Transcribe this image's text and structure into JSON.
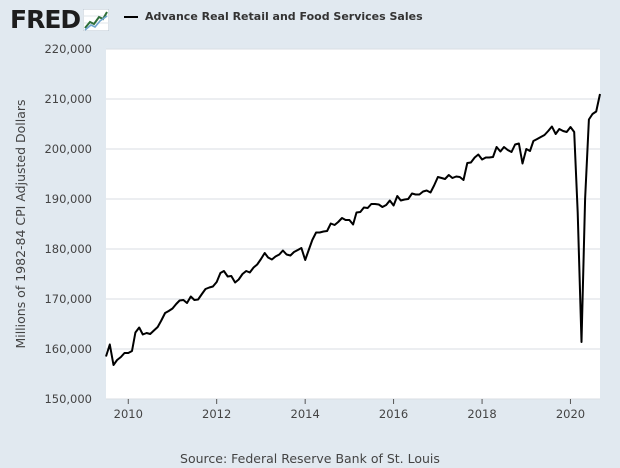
{
  "header": {
    "logo_text": "FRED",
    "legend_label": "Advance Real Retail and Food Services Sales"
  },
  "footer": {
    "source": "Source: Federal Reserve Bank of St. Louis"
  },
  "colors": {
    "page_background": "#e1e9f0",
    "plot_background": "#ffffff",
    "series_line": "#000000",
    "text": "#444444"
  },
  "chart_data": {
    "type": "line",
    "title": "",
    "xlabel": "",
    "ylabel": "Millions of 1982-84 CPI Adjusted Dollars",
    "x_type": "date",
    "xlim": [
      "2009-07-01",
      "2020-09-01"
    ],
    "ylim": [
      150000,
      220000
    ],
    "y_ticks": [
      150000,
      160000,
      170000,
      180000,
      190000,
      200000,
      210000,
      220000
    ],
    "y_tick_labels": [
      "150,000",
      "160,000",
      "170,000",
      "180,000",
      "190,000",
      "200,000",
      "210,000",
      "220,000"
    ],
    "x_ticks": [
      "2010-01-01",
      "2012-01-01",
      "2014-01-01",
      "2016-01-01",
      "2018-01-01",
      "2020-01-01"
    ],
    "x_tick_labels": [
      "2010",
      "2012",
      "2014",
      "2016",
      "2018",
      "2020"
    ],
    "grid": "horizontal",
    "legend_position": "top",
    "series": [
      {
        "name": "Advance Real Retail and Food Services Sales",
        "color": "#000000",
        "points": [
          [
            "2009-07-01",
            158500
          ],
          [
            "2009-08-01",
            160900
          ],
          [
            "2009-09-01",
            156800
          ],
          [
            "2009-10-01",
            157800
          ],
          [
            "2009-11-01",
            158400
          ],
          [
            "2009-12-01",
            159200
          ],
          [
            "2010-01-01",
            159200
          ],
          [
            "2010-02-01",
            159600
          ],
          [
            "2010-03-01",
            163300
          ],
          [
            "2010-04-01",
            164300
          ],
          [
            "2010-05-01",
            162900
          ],
          [
            "2010-06-01",
            163200
          ],
          [
            "2010-07-01",
            163000
          ],
          [
            "2010-08-01",
            163700
          ],
          [
            "2010-09-01",
            164400
          ],
          [
            "2010-10-01",
            165700
          ],
          [
            "2010-11-01",
            167200
          ],
          [
            "2010-12-01",
            167600
          ],
          [
            "2011-01-01",
            168100
          ],
          [
            "2011-02-01",
            169000
          ],
          [
            "2011-03-01",
            169700
          ],
          [
            "2011-04-01",
            169800
          ],
          [
            "2011-05-01",
            169200
          ],
          [
            "2011-06-01",
            170500
          ],
          [
            "2011-07-01",
            169800
          ],
          [
            "2011-08-01",
            169900
          ],
          [
            "2011-09-01",
            171000
          ],
          [
            "2011-10-01",
            172000
          ],
          [
            "2011-11-01",
            172300
          ],
          [
            "2011-12-01",
            172500
          ],
          [
            "2012-01-01",
            173400
          ],
          [
            "2012-02-01",
            175200
          ],
          [
            "2012-03-01",
            175600
          ],
          [
            "2012-04-01",
            174500
          ],
          [
            "2012-05-01",
            174600
          ],
          [
            "2012-06-01",
            173300
          ],
          [
            "2012-07-01",
            173900
          ],
          [
            "2012-08-01",
            175000
          ],
          [
            "2012-09-01",
            175600
          ],
          [
            "2012-10-01",
            175300
          ],
          [
            "2012-11-01",
            176300
          ],
          [
            "2012-12-01",
            176900
          ],
          [
            "2013-01-01",
            178000
          ],
          [
            "2013-02-01",
            179200
          ],
          [
            "2013-03-01",
            178300
          ],
          [
            "2013-04-01",
            177900
          ],
          [
            "2013-05-01",
            178500
          ],
          [
            "2013-06-01",
            178900
          ],
          [
            "2013-07-01",
            179700
          ],
          [
            "2013-08-01",
            178900
          ],
          [
            "2013-09-01",
            178700
          ],
          [
            "2013-10-01",
            179400
          ],
          [
            "2013-11-01",
            179800
          ],
          [
            "2013-12-01",
            180200
          ],
          [
            "2014-01-01",
            177800
          ],
          [
            "2014-02-01",
            179900
          ],
          [
            "2014-03-01",
            181800
          ],
          [
            "2014-04-01",
            183300
          ],
          [
            "2014-05-01",
            183300
          ],
          [
            "2014-06-01",
            183500
          ],
          [
            "2014-07-01",
            183600
          ],
          [
            "2014-08-01",
            185100
          ],
          [
            "2014-09-01",
            184800
          ],
          [
            "2014-10-01",
            185400
          ],
          [
            "2014-11-01",
            186200
          ],
          [
            "2014-12-01",
            185800
          ],
          [
            "2015-01-01",
            185800
          ],
          [
            "2015-02-01",
            184900
          ],
          [
            "2015-03-01",
            187300
          ],
          [
            "2015-04-01",
            187400
          ],
          [
            "2015-05-01",
            188300
          ],
          [
            "2015-06-01",
            188200
          ],
          [
            "2015-07-01",
            189000
          ],
          [
            "2015-08-01",
            189000
          ],
          [
            "2015-09-01",
            188900
          ],
          [
            "2015-10-01",
            188400
          ],
          [
            "2015-11-01",
            188800
          ],
          [
            "2015-12-01",
            189700
          ],
          [
            "2016-01-01",
            188700
          ],
          [
            "2016-02-01",
            190600
          ],
          [
            "2016-03-01",
            189700
          ],
          [
            "2016-04-01",
            189900
          ],
          [
            "2016-05-01",
            190000
          ],
          [
            "2016-06-01",
            191100
          ],
          [
            "2016-07-01",
            190900
          ],
          [
            "2016-08-01",
            190900
          ],
          [
            "2016-09-01",
            191500
          ],
          [
            "2016-10-01",
            191700
          ],
          [
            "2016-11-01",
            191300
          ],
          [
            "2016-12-01",
            192700
          ],
          [
            "2017-01-01",
            194400
          ],
          [
            "2017-02-01",
            194200
          ],
          [
            "2017-03-01",
            194000
          ],
          [
            "2017-04-01",
            194800
          ],
          [
            "2017-05-01",
            194200
          ],
          [
            "2017-06-01",
            194500
          ],
          [
            "2017-07-01",
            194400
          ],
          [
            "2017-08-01",
            193800
          ],
          [
            "2017-09-01",
            197200
          ],
          [
            "2017-10-01",
            197300
          ],
          [
            "2017-11-01",
            198300
          ],
          [
            "2017-12-01",
            198900
          ],
          [
            "2018-01-01",
            197900
          ],
          [
            "2018-02-01",
            198300
          ],
          [
            "2018-03-01",
            198300
          ],
          [
            "2018-04-01",
            198400
          ],
          [
            "2018-05-01",
            200400
          ],
          [
            "2018-06-01",
            199500
          ],
          [
            "2018-07-01",
            200400
          ],
          [
            "2018-08-01",
            199800
          ],
          [
            "2018-09-01",
            199400
          ],
          [
            "2018-10-01",
            200900
          ],
          [
            "2018-11-01",
            201100
          ],
          [
            "2018-12-01",
            197100
          ],
          [
            "2019-01-01",
            200000
          ],
          [
            "2019-02-01",
            199600
          ],
          [
            "2019-03-01",
            201600
          ],
          [
            "2019-04-01",
            202000
          ],
          [
            "2019-05-01",
            202400
          ],
          [
            "2019-06-01",
            202800
          ],
          [
            "2019-07-01",
            203600
          ],
          [
            "2019-08-01",
            204500
          ],
          [
            "2019-09-01",
            203000
          ],
          [
            "2019-10-01",
            204000
          ],
          [
            "2019-11-01",
            203600
          ],
          [
            "2019-12-01",
            203400
          ],
          [
            "2020-01-01",
            204400
          ],
          [
            "2020-02-01",
            203400
          ],
          [
            "2020-03-01",
            187300
          ],
          [
            "2020-04-01",
            161400
          ],
          [
            "2020-05-01",
            190000
          ],
          [
            "2020-06-01",
            205900
          ],
          [
            "2020-07-01",
            207000
          ],
          [
            "2020-08-01",
            207500
          ],
          [
            "2020-09-01",
            211000
          ]
        ]
      }
    ]
  }
}
